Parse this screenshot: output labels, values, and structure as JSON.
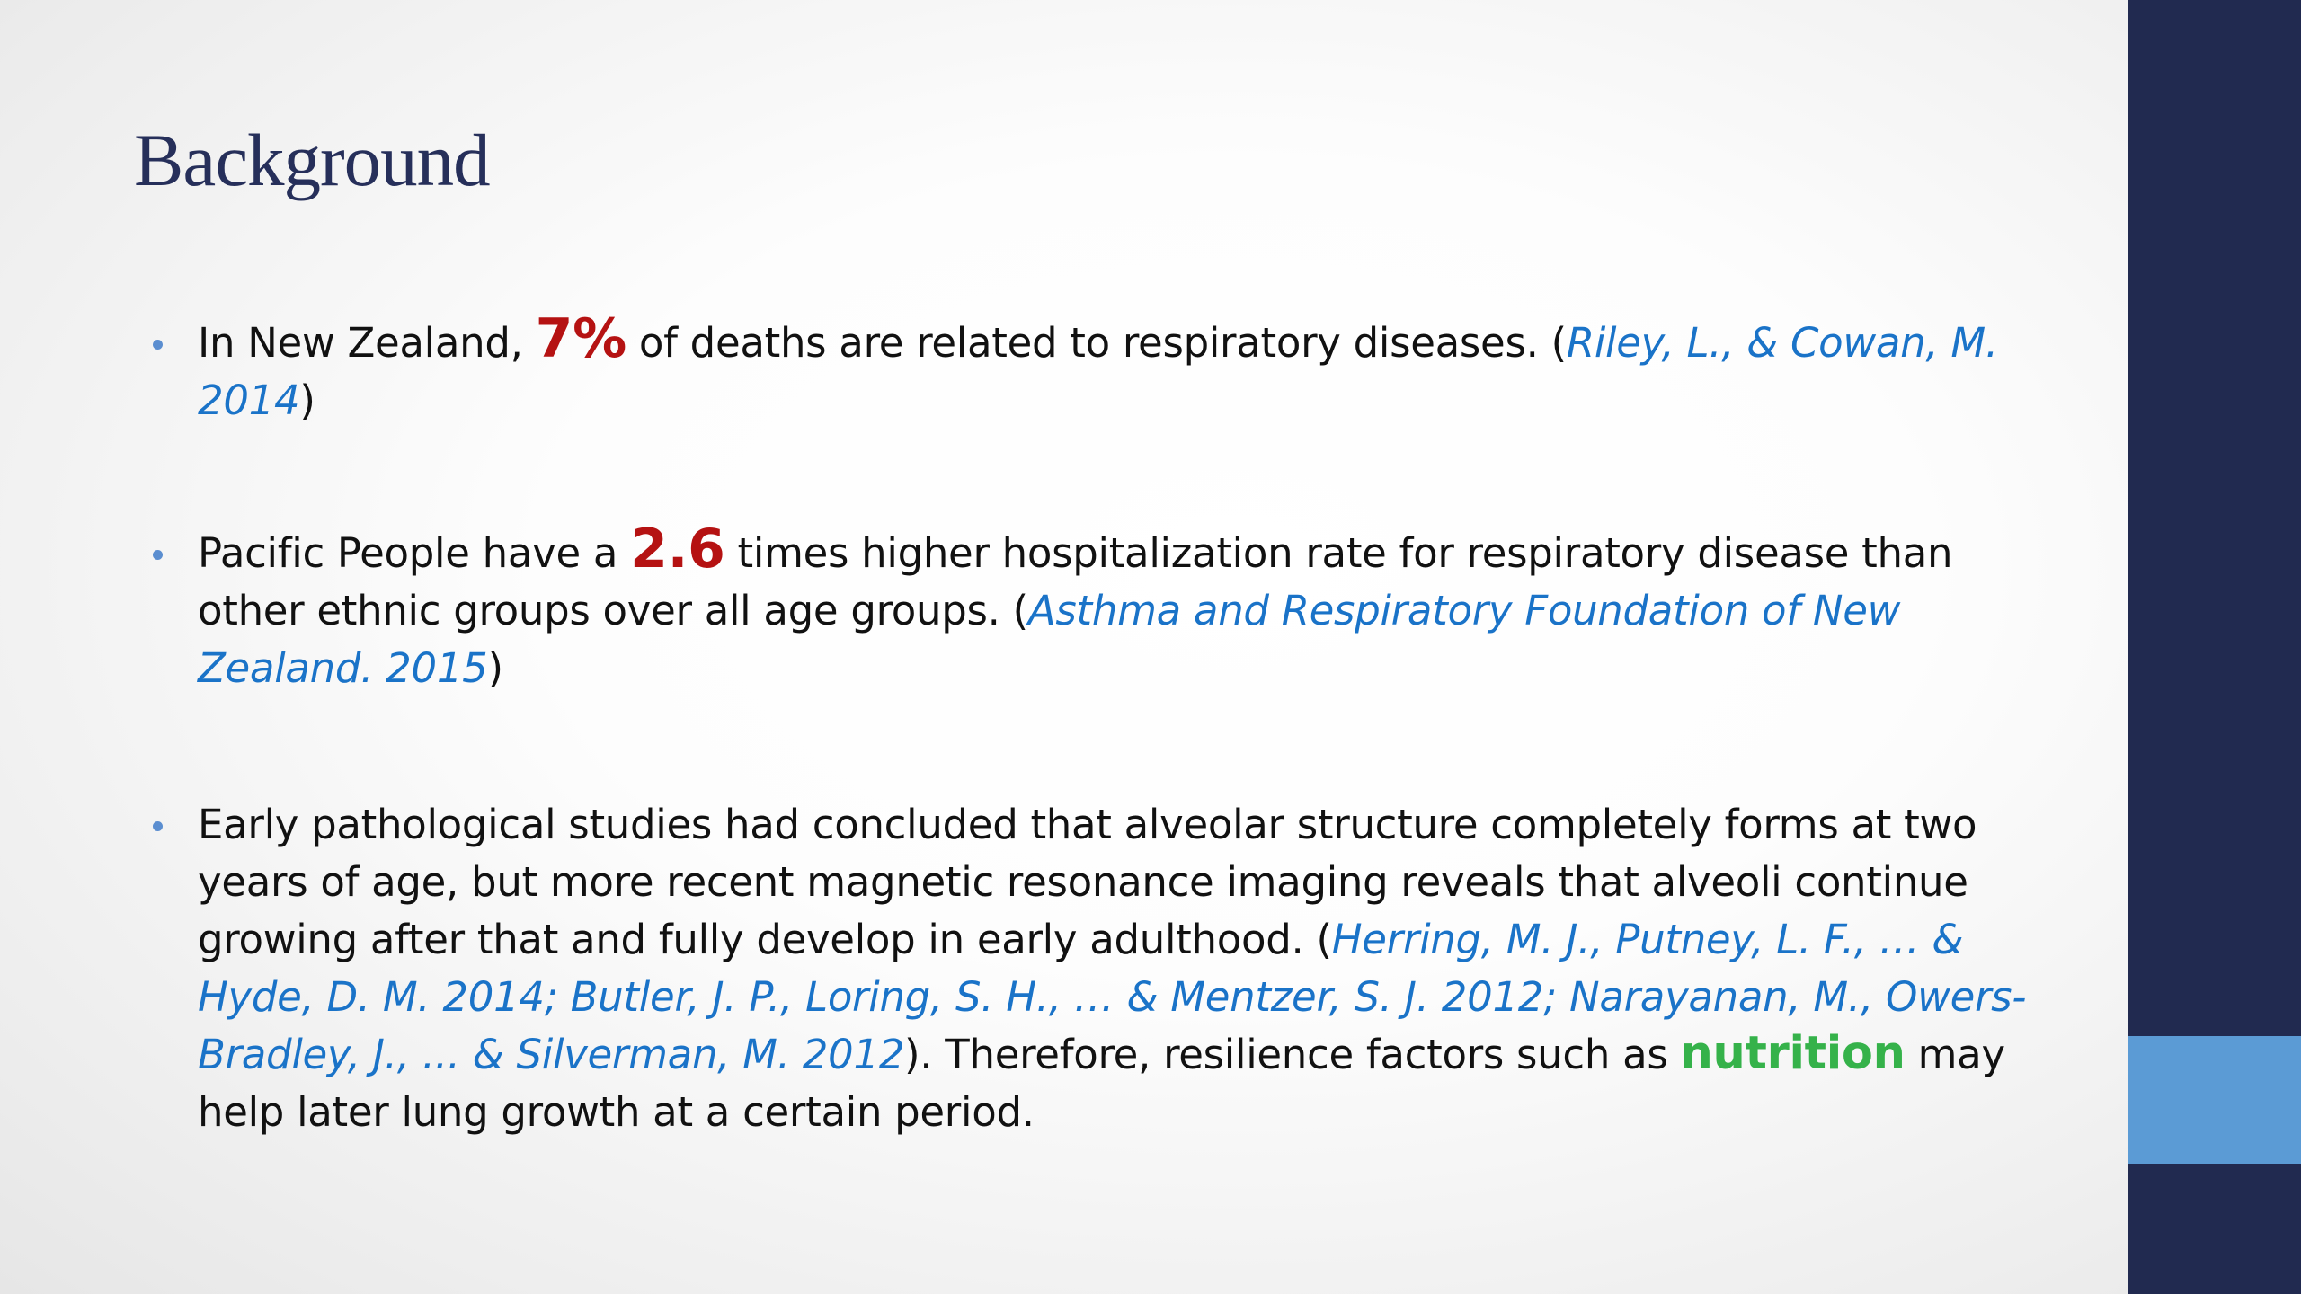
{
  "title": "Background",
  "bullets": [
    {
      "text_1": "In New Zealand, ",
      "highlight": "7%",
      "text_2": " of deaths are related to respiratory diseases. (",
      "citation": "Riley, L., & Cowan, M. 2014",
      "text_3": ")"
    },
    {
      "text_1": "Pacific People have a ",
      "highlight": "2.6",
      "text_2": " times higher hospitalization rate for respiratory disease than other ethnic groups over all age groups. (",
      "citation": "Asthma and Respiratory Foundation of New Zealand. 2015",
      "text_3": ")"
    },
    {
      "text_1": "Early pathological studies had concluded that alveolar structure completely forms at two years of age, but more recent magnetic resonance imaging reveals that alveoli continue growing after that and fully develop in early adulthood. (",
      "citation": "Herring, M. J., Putney, L. F., … & Hyde, D. M. 2014; Butler, J. P., Loring, S. H., … & Mentzer, S. J. 2012; Narayanan, M., Owers-Bradley, J., ... & Silverman, M. 2012",
      "text_2": "). Therefore, resilience factors such as ",
      "highlight": "nutrition",
      "text_3": " may help later lung growth at a certain period."
    }
  ],
  "colors": {
    "title": "#262f5a",
    "citation": "#1a73c8",
    "highlight_red": "#b51212",
    "highlight_green": "#35b24a",
    "side_bar": "#212a50",
    "side_accent": "#5b9bd5"
  }
}
